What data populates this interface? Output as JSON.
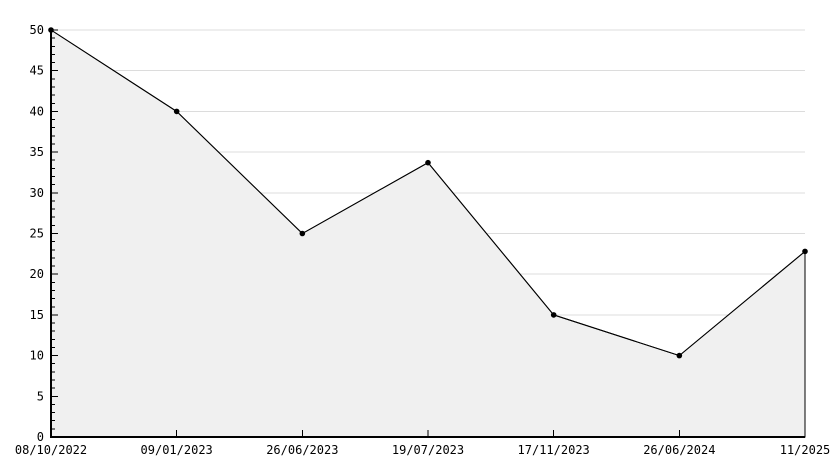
{
  "chart_data": {
    "type": "area",
    "title": "",
    "xlabel": "",
    "ylabel": "",
    "categories": [
      "08/10/2022",
      "09/01/2023",
      "26/06/2023",
      "19/07/2023",
      "17/11/2023",
      "26/06/2024",
      "11/2025"
    ],
    "values": [
      50,
      40,
      25,
      33.7,
      15,
      10,
      22.8
    ],
    "ylim": [
      0,
      50
    ],
    "yticks": [
      0,
      5,
      10,
      15,
      20,
      25,
      30,
      35,
      40,
      45,
      50
    ],
    "y_minor_step": 1,
    "grid": true,
    "legend": false,
    "colors": {
      "line": "#000000",
      "marker": "#000000",
      "fill": "#f0f0f0",
      "grid": "#dcdcdc",
      "axis": "#000000",
      "text": "#000000",
      "background": "#ffffff"
    }
  }
}
